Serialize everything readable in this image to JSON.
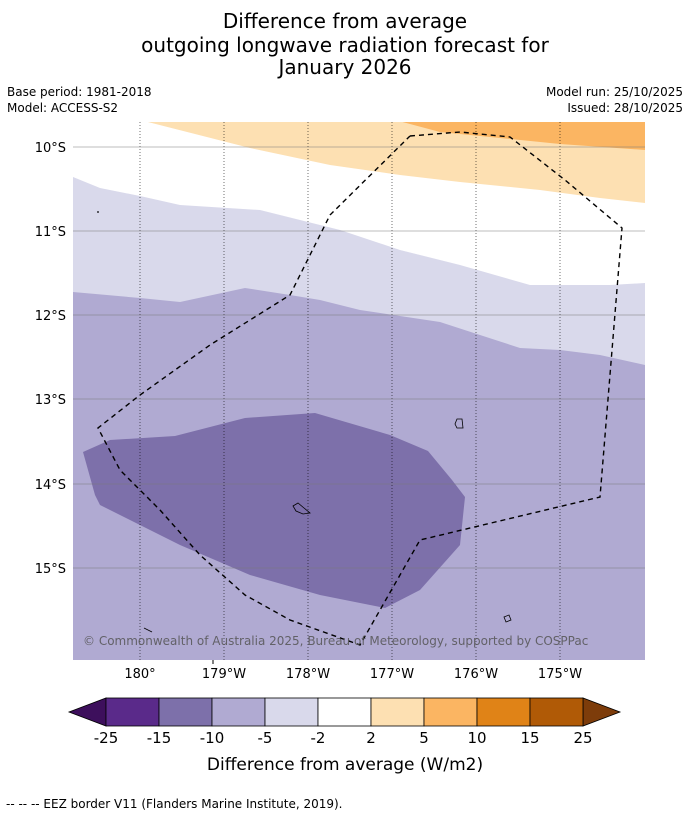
{
  "title": {
    "line1": "Difference from average",
    "line2": "outgoing longwave radiation forecast for",
    "line3": "January 2026"
  },
  "meta": {
    "base_period": "Base period: 1981-2018",
    "model": "Model: ACCESS-S2",
    "model_run": "Model run: 25/10/2025",
    "issued": "Issued: 28/10/2025"
  },
  "map": {
    "lat_labels": [
      "10°S",
      "11°S",
      "12°S",
      "13°S",
      "14°S",
      "15°S"
    ],
    "lon_labels": [
      "180°",
      "179°W",
      "178°W",
      "177°W",
      "176°W",
      "175°W"
    ],
    "copyright": "© Commonwealth of Australia 2025, Bureau of Meteorology, supported by COSPPac"
  },
  "legend": {
    "title": "Difference from average (W/m2)",
    "ticks": [
      "-25",
      "-15",
      "-10",
      "-5",
      "-2",
      "2",
      "5",
      "10",
      "15",
      "25"
    ],
    "colors": [
      "#3d0f5c",
      "#5a2a8a",
      "#7d70aa",
      "#b0aad2",
      "#d9d9eb",
      "#ffffff",
      "#fde0b2",
      "#fbb562",
      "#e08317",
      "#b05a06",
      "#7d3c0a"
    ]
  },
  "footer": "--  --  -- EEZ border V11 (Flanders Marine Institute, 2019)."
}
